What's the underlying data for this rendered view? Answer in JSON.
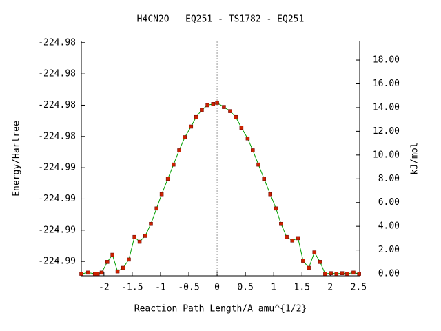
{
  "chart_data": {
    "type": "line",
    "title": "H4CN2O   EQ251 - TS1782 - EQ251",
    "x_label": "Reaction Path Length/A amu^{1/2}",
    "y_label": "Energy/Hartree",
    "y2_label": "kJ/mol",
    "xlim": [
      -2.4,
      2.52
    ],
    "xticks": [
      -2,
      -1.5,
      -1,
      -0.5,
      0,
      0.5,
      1,
      1.5,
      2,
      2.5
    ],
    "ylim": [
      -224.98856,
      -224.98106
    ],
    "yticks": [
      {
        "value": -224.9881,
        "label": "-224.99"
      },
      {
        "value": -224.9871,
        "label": "-224.99"
      },
      {
        "value": -224.9861,
        "label": "-224.99"
      },
      {
        "value": -224.9851,
        "label": "-224.99"
      },
      {
        "value": -224.9841,
        "label": "-224.98"
      },
      {
        "value": -224.9831,
        "label": "-224.98"
      },
      {
        "value": -224.9821,
        "label": "-224.98"
      },
      {
        "value": -224.9811,
        "label": "-224.98"
      }
    ],
    "y2lim": [
      -0.17,
      19.57
    ],
    "y2ticks": [
      {
        "value": 0,
        "label": "0.00"
      },
      {
        "value": 2,
        "label": "2.00"
      },
      {
        "value": 4,
        "label": "4.00"
      },
      {
        "value": 6,
        "label": "6.00"
      },
      {
        "value": 8,
        "label": "8.00"
      },
      {
        "value": 10,
        "label": "10.00"
      },
      {
        "value": 12,
        "label": "12.00"
      },
      {
        "value": 14,
        "label": "14.00"
      },
      {
        "value": 16,
        "label": "16.00"
      },
      {
        "value": 18,
        "label": "18.00"
      }
    ],
    "grid": false,
    "ts_line_x": 0,
    "x": [
      -2.4,
      -2.28,
      -2.16,
      -2.11,
      -2.04,
      -1.94,
      -1.85,
      -1.76,
      -1.66,
      -1.56,
      -1.46,
      -1.37,
      -1.27,
      -1.17,
      -1.07,
      -0.98,
      -0.87,
      -0.77,
      -0.67,
      -0.57,
      -0.46,
      -0.37,
      -0.27,
      -0.17,
      -0.07,
      0,
      0.12,
      0.23,
      0.33,
      0.43,
      0.54,
      0.63,
      0.73,
      0.83,
      0.94,
      1.04,
      1.13,
      1.23,
      1.33,
      1.43,
      1.52,
      1.62,
      1.72,
      1.82,
      1.91,
      2.01,
      2.11,
      2.21,
      2.3,
      2.41,
      2.51
    ],
    "series": [
      {
        "color": "#00a000",
        "marker_color": "#cc2200",
        "axis": "y2",
        "values": [
          0,
          0.1,
          0,
          0,
          0.1,
          1.0,
          1.6,
          0.2,
          0.5,
          1.2,
          3.1,
          2.7,
          3.2,
          4.2,
          5.5,
          6.7,
          8.0,
          9.2,
          10.4,
          11.5,
          12.4,
          13.2,
          13.8,
          14.2,
          14.3,
          14.4,
          14.05,
          13.7,
          13.2,
          12.3,
          11.4,
          10.4,
          9.2,
          8.0,
          6.7,
          5.5,
          4.2,
          3.1,
          2.8,
          3.0,
          1.1,
          0.5,
          1.8,
          1.0,
          0,
          0.05,
          0,
          0.05,
          0,
          0.1,
          0
        ]
      }
    ]
  }
}
